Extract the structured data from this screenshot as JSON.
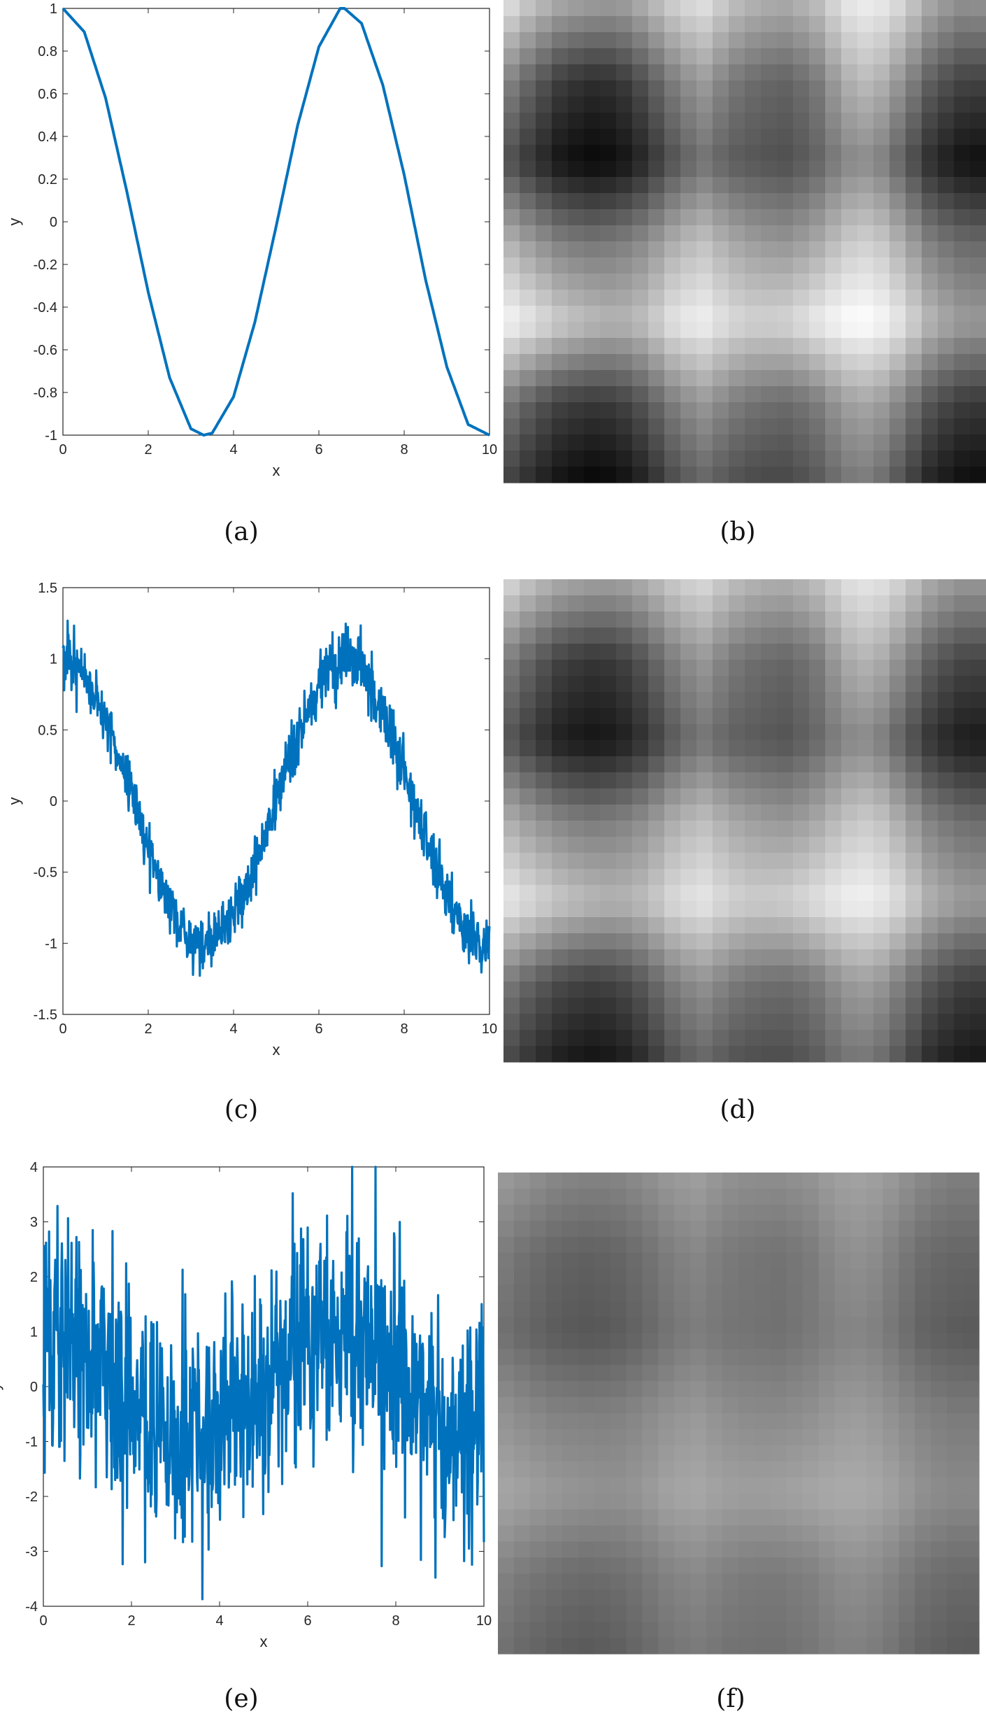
{
  "colors": {
    "line": "#0072BD",
    "axis": "#262626",
    "background": "#ffffff"
  },
  "chart_data": [
    {
      "id": "a",
      "type": "line",
      "caption": "(a)",
      "xlabel": "x",
      "ylabel": "y",
      "xlim": [
        0,
        10
      ],
      "ylim": [
        -1,
        1
      ],
      "xticks": [
        "0",
        "2",
        "4",
        "6",
        "8",
        "10"
      ],
      "yticks": [
        "-1",
        "-0.8",
        "-0.6",
        "-0.4",
        "-0.2",
        "0",
        "0.2",
        "0.4",
        "0.6",
        "0.8",
        "1"
      ],
      "series": [
        {
          "x": [
            0,
            0.5,
            1,
            1.5,
            2,
            2.5,
            3,
            3.3,
            3.5,
            4,
            4.5,
            5,
            5.5,
            6,
            6.5,
            6.6,
            7,
            7.5,
            8,
            8.5,
            9,
            9.5,
            10
          ],
          "values": [
            1,
            0.89,
            0.58,
            0.14,
            -0.33,
            -0.73,
            -0.97,
            -1,
            -0.99,
            -0.82,
            -0.47,
            -0.02,
            0.45,
            0.82,
            1,
            1,
            0.93,
            0.64,
            0.22,
            -0.27,
            -0.68,
            -0.95,
            -1
          ]
        }
      ],
      "noise": 0,
      "grid": false
    },
    {
      "id": "b",
      "type": "heatmap",
      "caption": "(b)",
      "colormap": "gray",
      "intensity_range": [
        0,
        1
      ],
      "rows": [
        [
          0.92,
          0.78,
          0.68,
          0.64,
          0.62,
          0.71,
          0.83,
          0.9,
          0.77,
          0.7,
          0.68,
          0.75,
          0.91,
          0.95,
          0.86,
          0.68,
          0.58,
          0.59
        ],
        [
          0.55,
          0.38,
          0.24,
          0.18,
          0.2,
          0.33,
          0.5,
          0.62,
          0.48,
          0.41,
          0.39,
          0.47,
          0.68,
          0.75,
          0.58,
          0.38,
          0.27,
          0.26
        ],
        [
          0.34,
          0.2,
          0.08,
          0.03,
          0.05,
          0.16,
          0.33,
          0.45,
          0.36,
          0.33,
          0.31,
          0.38,
          0.52,
          0.55,
          0.38,
          0.18,
          0.08,
          0.05
        ],
        [
          0.72,
          0.6,
          0.5,
          0.46,
          0.48,
          0.55,
          0.68,
          0.76,
          0.66,
          0.6,
          0.58,
          0.65,
          0.78,
          0.82,
          0.68,
          0.5,
          0.42,
          0.4
        ],
        [
          0.98,
          0.9,
          0.8,
          0.74,
          0.7,
          0.76,
          0.9,
          0.95,
          0.86,
          0.82,
          0.84,
          0.92,
          0.99,
          1.0,
          0.9,
          0.72,
          0.62,
          0.6
        ],
        [
          0.5,
          0.36,
          0.26,
          0.22,
          0.24,
          0.34,
          0.5,
          0.6,
          0.5,
          0.44,
          0.42,
          0.48,
          0.62,
          0.66,
          0.52,
          0.34,
          0.24,
          0.22
        ],
        [
          0.28,
          0.16,
          0.07,
          0.02,
          0.04,
          0.14,
          0.3,
          0.4,
          0.32,
          0.28,
          0.28,
          0.34,
          0.46,
          0.48,
          0.32,
          0.14,
          0.06,
          0.04
        ]
      ]
    },
    {
      "id": "c",
      "type": "line",
      "caption": "(c)",
      "xlabel": "x",
      "ylabel": "y",
      "xlim": [
        0,
        10
      ],
      "ylim": [
        -1.5,
        1.5
      ],
      "xticks": [
        "0",
        "2",
        "4",
        "6",
        "8",
        "10"
      ],
      "yticks": [
        "-1.5",
        "-1",
        "-0.5",
        "0",
        "0.5",
        "1",
        "1.5"
      ],
      "series": [
        {
          "x": [
            0,
            0.5,
            1,
            1.5,
            2,
            2.5,
            3,
            3.3,
            3.5,
            4,
            4.5,
            5,
            5.5,
            6,
            6.5,
            6.6,
            7,
            7.5,
            8,
            8.5,
            9,
            9.5,
            10
          ],
          "values": [
            1,
            0.89,
            0.58,
            0.14,
            -0.33,
            -0.73,
            -0.97,
            -1,
            -0.99,
            -0.82,
            -0.47,
            -0.02,
            0.45,
            0.82,
            1,
            1,
            0.93,
            0.64,
            0.22,
            -0.27,
            -0.68,
            -0.95,
            -1
          ]
        }
      ],
      "noise": 0.1,
      "grid": false
    },
    {
      "id": "d",
      "type": "heatmap",
      "caption": "(d)",
      "colormap": "gray",
      "intensity_range": [
        0,
        1
      ],
      "rows": [
        [
          0.88,
          0.76,
          0.68,
          0.64,
          0.63,
          0.7,
          0.8,
          0.86,
          0.76,
          0.7,
          0.69,
          0.75,
          0.88,
          0.91,
          0.83,
          0.68,
          0.6,
          0.6
        ],
        [
          0.52,
          0.38,
          0.26,
          0.21,
          0.23,
          0.34,
          0.5,
          0.6,
          0.48,
          0.42,
          0.4,
          0.47,
          0.66,
          0.72,
          0.56,
          0.38,
          0.28,
          0.27
        ],
        [
          0.36,
          0.23,
          0.12,
          0.08,
          0.1,
          0.2,
          0.36,
          0.46,
          0.38,
          0.35,
          0.33,
          0.4,
          0.52,
          0.54,
          0.38,
          0.21,
          0.12,
          0.1
        ],
        [
          0.7,
          0.6,
          0.52,
          0.48,
          0.5,
          0.56,
          0.68,
          0.75,
          0.66,
          0.61,
          0.59,
          0.65,
          0.76,
          0.8,
          0.67,
          0.51,
          0.44,
          0.42
        ],
        [
          0.93,
          0.86,
          0.78,
          0.73,
          0.7,
          0.75,
          0.86,
          0.91,
          0.83,
          0.8,
          0.82,
          0.88,
          0.94,
          0.95,
          0.86,
          0.7,
          0.62,
          0.6
        ],
        [
          0.5,
          0.38,
          0.29,
          0.25,
          0.27,
          0.36,
          0.5,
          0.58,
          0.49,
          0.44,
          0.43,
          0.48,
          0.6,
          0.63,
          0.5,
          0.35,
          0.26,
          0.24
        ],
        [
          0.3,
          0.19,
          0.11,
          0.07,
          0.09,
          0.18,
          0.32,
          0.4,
          0.33,
          0.3,
          0.3,
          0.35,
          0.45,
          0.46,
          0.33,
          0.17,
          0.1,
          0.08
        ]
      ]
    },
    {
      "id": "e",
      "type": "line",
      "caption": "(e)",
      "xlabel": "x",
      "ylabel": "y",
      "xlim": [
        0,
        10
      ],
      "ylim": [
        -4,
        4
      ],
      "xticks": [
        "0",
        "2",
        "4",
        "6",
        "8",
        "10"
      ],
      "yticks": [
        "-4",
        "-3",
        "-2",
        "-1",
        "0",
        "1",
        "2",
        "3",
        "4"
      ],
      "series": [
        {
          "x": [
            0,
            0.5,
            1,
            1.5,
            2,
            2.5,
            3,
            3.3,
            3.5,
            4,
            4.5,
            5,
            5.5,
            6,
            6.5,
            6.6,
            7,
            7.5,
            8,
            8.5,
            9,
            9.5,
            10
          ],
          "values": [
            1,
            0.89,
            0.58,
            0.14,
            -0.33,
            -0.73,
            -0.97,
            -1,
            -0.99,
            -0.82,
            -0.47,
            -0.02,
            0.45,
            0.82,
            1,
            1,
            0.93,
            0.64,
            0.22,
            -0.27,
            -0.68,
            -0.95,
            -1
          ]
        }
      ],
      "noise": 1,
      "grid": false
    },
    {
      "id": "f",
      "type": "heatmap",
      "caption": "(f)",
      "colormap": "gray",
      "intensity_range": [
        0,
        1
      ],
      "rows": [
        [
          0.62,
          0.58,
          0.54,
          0.52,
          0.52,
          0.55,
          0.6,
          0.63,
          0.58,
          0.56,
          0.56,
          0.58,
          0.63,
          0.64,
          0.6,
          0.54,
          0.5,
          0.5
        ],
        [
          0.5,
          0.44,
          0.4,
          0.38,
          0.39,
          0.43,
          0.49,
          0.53,
          0.48,
          0.46,
          0.45,
          0.48,
          0.55,
          0.57,
          0.5,
          0.43,
          0.4,
          0.4
        ],
        [
          0.45,
          0.4,
          0.36,
          0.34,
          0.35,
          0.39,
          0.45,
          0.49,
          0.46,
          0.45,
          0.44,
          0.47,
          0.51,
          0.52,
          0.46,
          0.39,
          0.36,
          0.35
        ],
        [
          0.58,
          0.54,
          0.51,
          0.5,
          0.5,
          0.53,
          0.57,
          0.6,
          0.56,
          0.54,
          0.54,
          0.56,
          0.6,
          0.61,
          0.56,
          0.51,
          0.48,
          0.48
        ],
        [
          0.66,
          0.63,
          0.6,
          0.58,
          0.57,
          0.59,
          0.64,
          0.66,
          0.63,
          0.62,
          0.63,
          0.65,
          0.67,
          0.67,
          0.63,
          0.57,
          0.54,
          0.54
        ],
        [
          0.52,
          0.47,
          0.44,
          0.42,
          0.43,
          0.46,
          0.51,
          0.54,
          0.5,
          0.48,
          0.48,
          0.5,
          0.55,
          0.56,
          0.51,
          0.45,
          0.42,
          0.42
        ],
        [
          0.45,
          0.4,
          0.37,
          0.35,
          0.36,
          0.4,
          0.45,
          0.48,
          0.45,
          0.44,
          0.44,
          0.46,
          0.5,
          0.5,
          0.45,
          0.39,
          0.36,
          0.35
        ]
      ]
    }
  ]
}
